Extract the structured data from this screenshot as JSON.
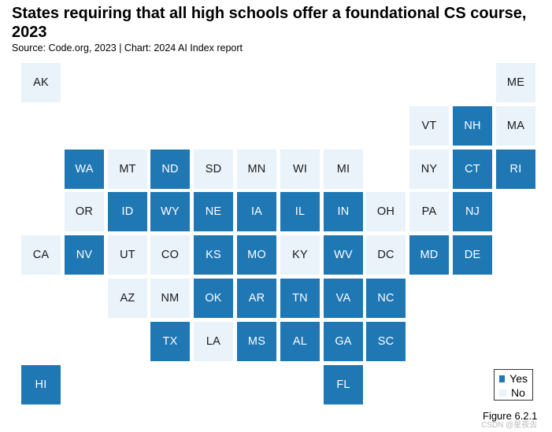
{
  "title": "States requiring that all high schools offer a foundational CS course, 2023",
  "subtitle": "Source: Code.org, 2023 | Chart: 2024 AI Index report",
  "footnote": "Figure 6.2.1",
  "watermark": "CSDN @星夜去",
  "colors": {
    "yes": "#1f77b4",
    "no": "#eaf2fa"
  },
  "legend": [
    {
      "key": "yes",
      "label": "Yes"
    },
    {
      "key": "no",
      "label": "No"
    }
  ],
  "chart_data": {
    "type": "tile-map",
    "legend_placement": "bottom-right",
    "states": [
      {
        "abbr": "AK",
        "status": "no",
        "row": 0,
        "col": 0
      },
      {
        "abbr": "ME",
        "status": "no",
        "row": 0,
        "col": 11
      },
      {
        "abbr": "VT",
        "status": "no",
        "row": 1,
        "col": 9
      },
      {
        "abbr": "NH",
        "status": "yes",
        "row": 1,
        "col": 10
      },
      {
        "abbr": "MA",
        "status": "no",
        "row": 1,
        "col": 11
      },
      {
        "abbr": "WA",
        "status": "yes",
        "row": 2,
        "col": 1
      },
      {
        "abbr": "MT",
        "status": "no",
        "row": 2,
        "col": 2
      },
      {
        "abbr": "ND",
        "status": "yes",
        "row": 2,
        "col": 3
      },
      {
        "abbr": "SD",
        "status": "no",
        "row": 2,
        "col": 4
      },
      {
        "abbr": "MN",
        "status": "no",
        "row": 2,
        "col": 5
      },
      {
        "abbr": "WI",
        "status": "no",
        "row": 2,
        "col": 6
      },
      {
        "abbr": "MI",
        "status": "no",
        "row": 2,
        "col": 7
      },
      {
        "abbr": "NY",
        "status": "no",
        "row": 2,
        "col": 9
      },
      {
        "abbr": "CT",
        "status": "yes",
        "row": 2,
        "col": 10
      },
      {
        "abbr": "RI",
        "status": "yes",
        "row": 2,
        "col": 11
      },
      {
        "abbr": "OR",
        "status": "no",
        "row": 3,
        "col": 1
      },
      {
        "abbr": "ID",
        "status": "yes",
        "row": 3,
        "col": 2
      },
      {
        "abbr": "WY",
        "status": "yes",
        "row": 3,
        "col": 3
      },
      {
        "abbr": "NE",
        "status": "yes",
        "row": 3,
        "col": 4
      },
      {
        "abbr": "IA",
        "status": "yes",
        "row": 3,
        "col": 5
      },
      {
        "abbr": "IL",
        "status": "yes",
        "row": 3,
        "col": 6
      },
      {
        "abbr": "IN",
        "status": "yes",
        "row": 3,
        "col": 7
      },
      {
        "abbr": "OH",
        "status": "no",
        "row": 3,
        "col": 8
      },
      {
        "abbr": "PA",
        "status": "no",
        "row": 3,
        "col": 9
      },
      {
        "abbr": "NJ",
        "status": "yes",
        "row": 3,
        "col": 10
      },
      {
        "abbr": "CA",
        "status": "no",
        "row": 4,
        "col": 0
      },
      {
        "abbr": "NV",
        "status": "yes",
        "row": 4,
        "col": 1
      },
      {
        "abbr": "UT",
        "status": "no",
        "row": 4,
        "col": 2
      },
      {
        "abbr": "CO",
        "status": "no",
        "row": 4,
        "col": 3
      },
      {
        "abbr": "KS",
        "status": "yes",
        "row": 4,
        "col": 4
      },
      {
        "abbr": "MO",
        "status": "yes",
        "row": 4,
        "col": 5
      },
      {
        "abbr": "KY",
        "status": "no",
        "row": 4,
        "col": 6
      },
      {
        "abbr": "WV",
        "status": "yes",
        "row": 4,
        "col": 7
      },
      {
        "abbr": "DC",
        "status": "no",
        "row": 4,
        "col": 8
      },
      {
        "abbr": "MD",
        "status": "yes",
        "row": 4,
        "col": 9
      },
      {
        "abbr": "DE",
        "status": "yes",
        "row": 4,
        "col": 10
      },
      {
        "abbr": "AZ",
        "status": "no",
        "row": 5,
        "col": 2
      },
      {
        "abbr": "NM",
        "status": "no",
        "row": 5,
        "col": 3
      },
      {
        "abbr": "OK",
        "status": "yes",
        "row": 5,
        "col": 4
      },
      {
        "abbr": "AR",
        "status": "yes",
        "row": 5,
        "col": 5
      },
      {
        "abbr": "TN",
        "status": "yes",
        "row": 5,
        "col": 6
      },
      {
        "abbr": "VA",
        "status": "yes",
        "row": 5,
        "col": 7
      },
      {
        "abbr": "NC",
        "status": "yes",
        "row": 5,
        "col": 8
      },
      {
        "abbr": "TX",
        "status": "yes",
        "row": 6,
        "col": 3
      },
      {
        "abbr": "LA",
        "status": "no",
        "row": 6,
        "col": 4
      },
      {
        "abbr": "MS",
        "status": "yes",
        "row": 6,
        "col": 5
      },
      {
        "abbr": "AL",
        "status": "yes",
        "row": 6,
        "col": 6
      },
      {
        "abbr": "GA",
        "status": "yes",
        "row": 6,
        "col": 7
      },
      {
        "abbr": "SC",
        "status": "yes",
        "row": 6,
        "col": 8
      },
      {
        "abbr": "HI",
        "status": "yes",
        "row": 7,
        "col": 0
      },
      {
        "abbr": "FL",
        "status": "yes",
        "row": 7,
        "col": 7
      }
    ]
  }
}
